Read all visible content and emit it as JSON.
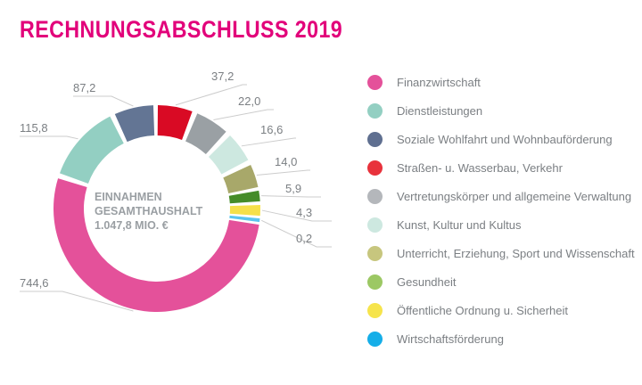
{
  "chart_data": {
    "type": "pie",
    "title": "RECHNUNGSABSCHLUSS 2019",
    "center_label": [
      "EINNAHMEN",
      "GESAMTHAUSHALT",
      "1.047,8 MIO. €"
    ],
    "legend_position": "right",
    "slices": [
      {
        "name": "Finanzwirtschaft",
        "value": 744.6,
        "label": "744,6",
        "color": "#e4519a"
      },
      {
        "name": "Dienstleistungen",
        "value": 115.8,
        "label": "115,8",
        "color": "#93cfc2"
      },
      {
        "name": "Soziale Wohlfahrt und Wohnbauförderung",
        "value": 87.2,
        "label": "87,2",
        "color": "#637594"
      },
      {
        "name": "Straßen- u. Wasserbau, Verkehr",
        "value": 37.2,
        "label": "37,2",
        "color": "#d90a24"
      },
      {
        "name": "Vertretungskörper und allgemeine Verwaltung",
        "value": 22.0,
        "label": "22,0",
        "color": "#9aa0a4"
      },
      {
        "name": "Kunst, Kultur und Kultus",
        "value": 16.6,
        "label": "16,6",
        "color": "#cde8e0"
      },
      {
        "name": "Unterricht, Erziehung, Sport und Wissenschaft",
        "value": 14.0,
        "label": "14,0",
        "color": "#a8a86a"
      },
      {
        "name": "Gesundheit",
        "value": 5.9,
        "label": "5,9",
        "color": "#458c29"
      },
      {
        "name": "Öffentliche Ordnung u. Sicherheit",
        "value": 4.3,
        "label": "4,3",
        "color": "#f5e04a"
      },
      {
        "name": "Wirtschaftsförderung",
        "value": 0.2,
        "label": "0,2",
        "color": "#5bc4ef"
      }
    ],
    "legend_colors": [
      "#e4519a",
      "#93cfc2",
      "#5f6f90",
      "#e8323c",
      "#b4b7bb",
      "#cde8e0",
      "#c7c67e",
      "#9cc864",
      "#f6e44c",
      "#15aee8"
    ]
  }
}
